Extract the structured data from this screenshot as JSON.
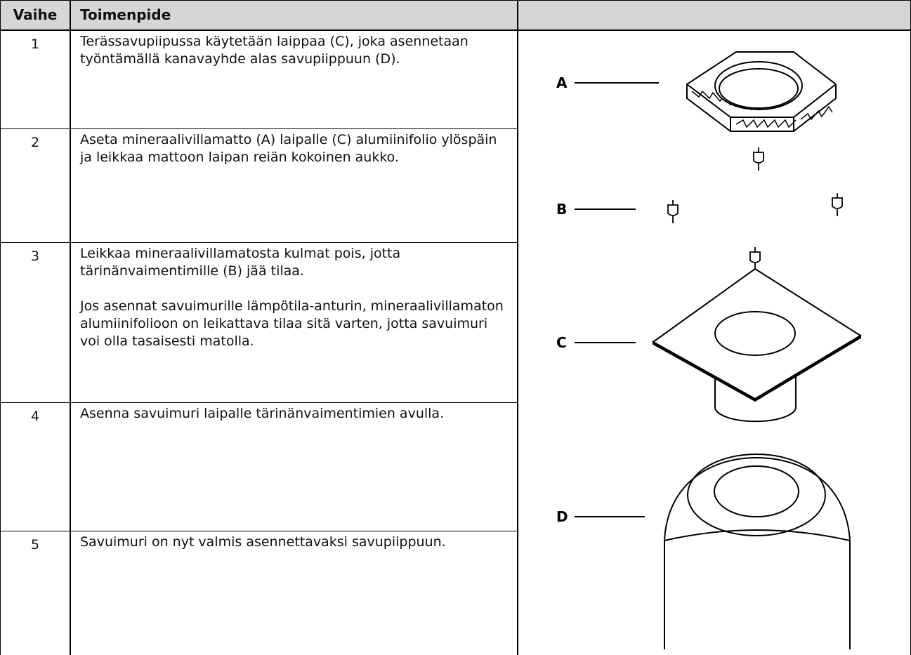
{
  "table": {
    "header": [
      "Vaihe",
      "Toimenpide"
    ],
    "rows": [
      {
        "step": "1",
        "text": [
          "Terässavupiipussa käytetään laippaa (C), joka asennetaan työntämällä kanavayhde alas savupiippuun (D)."
        ]
      },
      {
        "step": "2",
        "text": [
          "Aseta mineraalivillamatto (A) laipalle (C) alumiinifolio ylöspäin ja leikkaa mattoon laipan reiän kokoinen aukko."
        ]
      },
      {
        "step": "3",
        "text": [
          "Leikkaa mineraalivillamatosta kulmat pois, jotta tärinänvaimentimille (B) jää tilaa.",
          "Jos asennat savuimurille lämpötila-anturin, mineraalivillamaton alumiinifolioon on leikattava tilaa sitä varten, jotta savuimuri voi olla tasaisesti matolla."
        ]
      },
      {
        "step": "4",
        "text": [
          "Asenna savuimuri laipalle tärinänvaimentimien avulla."
        ]
      },
      {
        "step": "5",
        "text": [
          "Savuimuri on nyt valmis asennettavaksi savupiippuun."
        ]
      }
    ]
  },
  "diagram": {
    "labels": [
      "A",
      "B",
      "C",
      "D"
    ]
  }
}
